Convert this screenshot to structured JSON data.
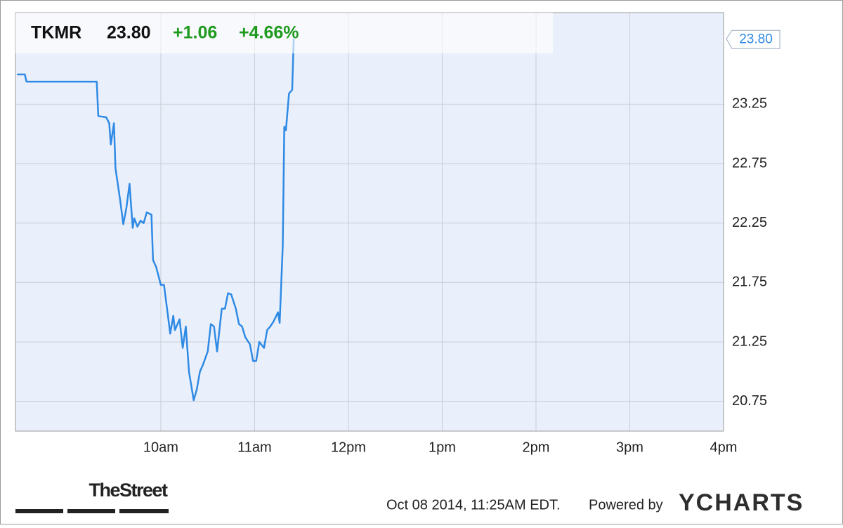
{
  "chart_data": {
    "type": "line",
    "ticker": "TKMR",
    "price": "23.80",
    "change": "+1.06",
    "change_pct": "+4.66%",
    "color": "#2f8ae5",
    "change_color": "#1e9a1e",
    "grid": true,
    "x": [
      508,
      513,
      514,
      559,
      560,
      565,
      567,
      568,
      570,
      571,
      574,
      576,
      578,
      580,
      582,
      583,
      585,
      587,
      589,
      591,
      594,
      595,
      597,
      600,
      602,
      604,
      606,
      608,
      609,
      612,
      614,
      616,
      618,
      621,
      623,
      625,
      627,
      630,
      632,
      634,
      636,
      639,
      641,
      643,
      645,
      648,
      650,
      652,
      654,
      657,
      659,
      661,
      663,
      666,
      668,
      670,
      672,
      675,
      676,
      678,
      679,
      680,
      682,
      684,
      685
    ],
    "values": [
      23.5,
      23.5,
      23.44,
      23.44,
      23.15,
      23.14,
      23.09,
      22.91,
      23.09,
      22.71,
      22.44,
      22.24,
      22.38,
      22.58,
      22.21,
      22.29,
      22.22,
      22.27,
      22.25,
      22.34,
      22.32,
      21.94,
      21.88,
      21.73,
      21.73,
      21.53,
      21.32,
      21.47,
      21.35,
      21.44,
      21.2,
      21.38,
      21.0,
      20.76,
      20.85,
      21.0,
      21.06,
      21.17,
      21.4,
      21.38,
      21.17,
      21.53,
      21.53,
      21.66,
      21.65,
      21.53,
      21.4,
      21.38,
      21.29,
      21.23,
      21.09,
      21.09,
      21.25,
      21.2,
      21.35,
      21.38,
      21.42,
      21.5,
      21.41,
      22.06,
      23.06,
      23.03,
      23.34,
      23.37,
      23.8
    ],
    "xlim": [
      507,
      960
    ],
    "xticks": [
      {
        "value": 600,
        "label": "10am"
      },
      {
        "value": 660,
        "label": "11am"
      },
      {
        "value": 720,
        "label": "12pm"
      },
      {
        "value": 780,
        "label": "1pm"
      },
      {
        "value": 840,
        "label": "2pm"
      },
      {
        "value": 900,
        "label": "3pm"
      },
      {
        "value": 960,
        "label": "4pm"
      }
    ],
    "ylim": [
      20.5,
      24.02
    ],
    "yticks": [
      20.75,
      21.25,
      21.75,
      22.25,
      22.75,
      23.25
    ],
    "logo": "TheStreet",
    "timestamp": "Oct 08 2014, 11:25AM EDT.",
    "powered_by": "Powered by",
    "brand": "YCHARTS"
  }
}
